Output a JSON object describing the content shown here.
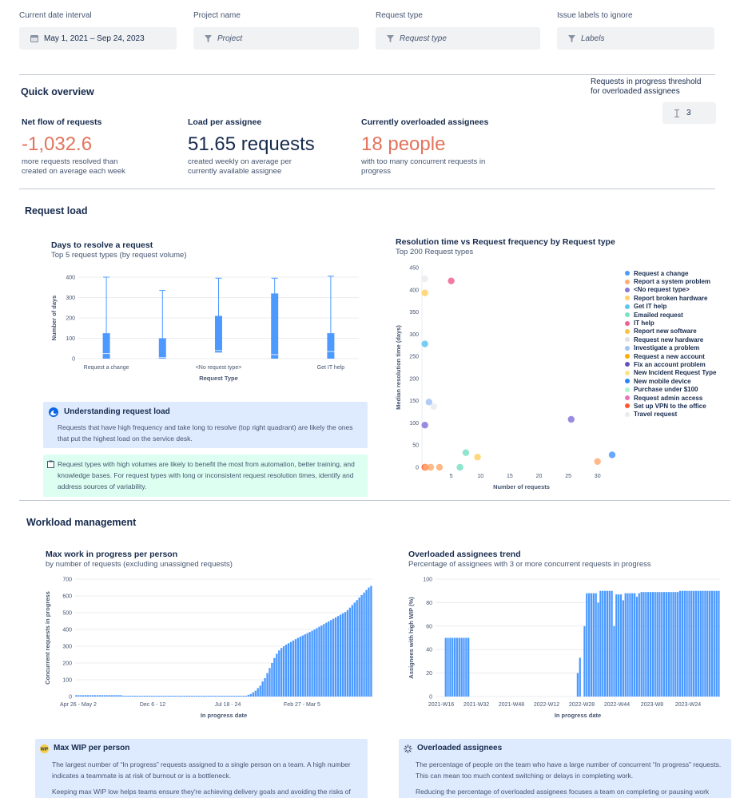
{
  "filters": {
    "date": {
      "label": "Current date interval",
      "value": "May 1, 2021  –  Sep 24, 2023"
    },
    "project": {
      "label": "Project name",
      "placeholder": "Project"
    },
    "request_type": {
      "label": "Request type",
      "placeholder": "Request type"
    },
    "labels": {
      "label": "Issue labels to ignore",
      "placeholder": "Labels"
    }
  },
  "overview": {
    "title": "Quick overview",
    "threshold_label": "Requests in progress threshold for overloaded assignees",
    "threshold_value": "3",
    "metrics": [
      {
        "title": "Net flow of requests",
        "value": "-1,032.6",
        "desc": "more requests resolved than created on average each week",
        "color": "#e2735c"
      },
      {
        "title": "Load per assignee",
        "value": "51.65 requests",
        "desc": "created weekly on average per currently available assignee",
        "color": "#172b4d"
      },
      {
        "title": "Currently overloaded assignees",
        "value": "18 people",
        "desc": "with too many concurrent requests in progress",
        "color": "#e2735c"
      }
    ]
  },
  "request_load": {
    "title": "Request load",
    "days_chart": {
      "title": "Days to resolve a request",
      "subtitle": "Top 5 request types (by request volume)"
    },
    "scatter_chart": {
      "title": "Resolution time vs Request frequency by Request type",
      "subtitle": "Top 200 Request types"
    },
    "info_panel": {
      "title": "Understanding request load",
      "text": "Requests that have high frequency and take long to resolve (top right quadrant) are likely the ones that put the highest load on the service desk."
    },
    "tip_panel": {
      "text": "Request types with high volumes are likely to benefit the most from automation, better training, and knowledge bases. For request types with long or inconsistent request resolution times, identify and address sources of variability."
    }
  },
  "workload": {
    "title": "Workload management",
    "wip_chart": {
      "title": "Max work in progress per person",
      "subtitle": "by number of requests (excluding unassigned requests)"
    },
    "overload_chart": {
      "title": "Overloaded assignees trend",
      "subtitle": "Percentage of assignees with 3 or more concurrent requests in progress"
    },
    "wip_panel": {
      "title": "Max WIP per person",
      "text1": "The largest number of “In progress” requests assigned to a single person on a team. A high number indicates a teammate is at risk of burnout or is a bottleneck.",
      "text2": "Keeping max WIP low helps teams ensure they're achieving delivery goals and avoiding the risks of"
    },
    "overload_panel": {
      "title": "Overloaded assignees",
      "text1": "The percentage of people on the team who have a large number of concurrent “In progress” requests. This can mean too much context switching or delays in completing work.",
      "text2": "Reducing the percentage of overloaded assignees focuses a team on completing or pausing work"
    }
  },
  "chart_data": [
    {
      "type": "box",
      "title": "Days to resolve a request",
      "xlabel": "Request Type",
      "ylabel": "Number of days",
      "ylim": [
        0,
        400
      ],
      "yticks": [
        0,
        100,
        200,
        300,
        400
      ],
      "categories": [
        "Request a change",
        "",
        "<No request type>",
        "",
        "Get IT help"
      ],
      "boxes": [
        {
          "min": 0,
          "q1": 0,
          "median": 25,
          "q3": 125,
          "max": 400
        },
        {
          "min": 0,
          "q1": 0,
          "median": 5,
          "q3": 100,
          "max": 335
        },
        {
          "min": 25,
          "q1": 30,
          "median": 40,
          "q3": 210,
          "max": 395
        },
        {
          "min": 0,
          "q1": 0,
          "median": 20,
          "q3": 320,
          "max": 395
        },
        {
          "min": 0,
          "q1": 0,
          "median": 35,
          "q3": 125,
          "max": 405
        }
      ],
      "color": "#4c9aff"
    },
    {
      "type": "scatter",
      "title": "Resolution time vs Request frequency by Request type",
      "xlabel": "Number of requests",
      "ylabel": "Median resolution time (days)",
      "xlim": [
        0,
        34
      ],
      "ylim": [
        0,
        450
      ],
      "xticks": [
        5,
        10,
        15,
        20,
        25,
        30
      ],
      "yticks": [
        0,
        50,
        100,
        150,
        200,
        250,
        300,
        350,
        400,
        450
      ],
      "legend": [
        {
          "name": "Request a change",
          "color": "#4c9aff"
        },
        {
          "name": "Report a system problem",
          "color": "#ffab73"
        },
        {
          "name": "<No request type>",
          "color": "#8777d9"
        },
        {
          "name": "Report broken hardware",
          "color": "#ffd166"
        },
        {
          "name": "Get IT help",
          "color": "#5ec5f2"
        },
        {
          "name": "Emailed request",
          "color": "#79e2c4"
        },
        {
          "name": "IT help",
          "color": "#f06292"
        },
        {
          "name": "Report new software",
          "color": "#f6c342"
        },
        {
          "name": "Request new hardware",
          "color": "#dfe1e6"
        },
        {
          "name": "Investigate a problem",
          "color": "#a3c4f3"
        },
        {
          "name": "Request a new account",
          "color": "#ffab00"
        },
        {
          "name": "Fix an account problem",
          "color": "#6554c0"
        },
        {
          "name": "New Incident Request Type",
          "color": "#ffe380"
        },
        {
          "name": "New mobile device",
          "color": "#2684ff"
        },
        {
          "name": "Purchase under $100",
          "color": "#abf5d1"
        },
        {
          "name": "Request admin access",
          "color": "#e774bb"
        },
        {
          "name": "Set up VPN to the office",
          "color": "#ff5630"
        },
        {
          "name": "Travel request",
          "color": "#e9ebee"
        }
      ],
      "points": [
        {
          "x": 0.5,
          "y": 425,
          "color": "#e9ebee"
        },
        {
          "x": 0.5,
          "y": 393,
          "color": "#ffd166"
        },
        {
          "x": 5,
          "y": 420,
          "color": "#f06292"
        },
        {
          "x": 0.5,
          "y": 278,
          "color": "#5ec5f2"
        },
        {
          "x": 1.2,
          "y": 147,
          "color": "#a3c4f3"
        },
        {
          "x": 2,
          "y": 137,
          "color": "#e9ebee"
        },
        {
          "x": 0.5,
          "y": 95,
          "color": "#8777d9"
        },
        {
          "x": 0.5,
          "y": 0,
          "color": "#ff5630"
        },
        {
          "x": 0.7,
          "y": 0,
          "color": "#ffab73"
        },
        {
          "x": 1.5,
          "y": 0,
          "color": "#ffab73"
        },
        {
          "x": 3,
          "y": 0,
          "color": "#ffab73"
        },
        {
          "x": 6.5,
          "y": 0,
          "color": "#79e2c4"
        },
        {
          "x": 7.5,
          "y": 33,
          "color": "#79e2c4"
        },
        {
          "x": 9.5,
          "y": 23,
          "color": "#ffd166"
        },
        {
          "x": 25.5,
          "y": 108,
          "color": "#8777d9"
        },
        {
          "x": 30,
          "y": 13,
          "color": "#ffab73"
        },
        {
          "x": 32.5,
          "y": 28,
          "color": "#4c9aff"
        }
      ]
    },
    {
      "type": "bar",
      "title": "Max work in progress per person",
      "xlabel": "In progress date",
      "ylabel": "Concurrent requests in progress",
      "ylim": [
        0,
        700
      ],
      "yticks": [
        0,
        100,
        200,
        300,
        400,
        500,
        600,
        700
      ],
      "tick_labels": [
        "Apr 26 - May 2",
        "Dec 6 - 12",
        "Jul 18 - 24",
        "Feb 27 - Mar 5"
      ],
      "weeks": 125,
      "values": [
        8,
        8,
        8,
        8,
        8,
        8,
        8,
        8,
        8,
        8,
        8,
        8,
        8,
        8,
        8,
        8,
        8,
        8,
        8,
        8,
        5,
        5,
        5,
        5,
        5,
        5,
        5,
        5,
        5,
        5,
        5,
        5,
        5,
        5,
        5,
        5,
        5,
        5,
        5,
        5,
        5,
        5,
        5,
        5,
        5,
        5,
        5,
        5,
        5,
        5,
        5,
        5,
        5,
        5,
        5,
        5,
        5,
        5,
        5,
        5,
        5,
        5,
        5,
        5,
        5,
        5,
        5,
        5,
        5,
        5,
        5,
        5,
        5,
        10,
        15,
        25,
        35,
        50,
        65,
        90,
        110,
        140,
        170,
        200,
        230,
        255,
        275,
        290,
        300,
        310,
        318,
        326,
        334,
        342,
        350,
        357,
        364,
        371,
        378,
        385,
        392,
        400,
        408,
        416,
        424,
        432,
        440,
        448,
        456,
        464,
        472,
        480,
        488,
        496,
        504,
        515,
        530,
        545,
        560,
        575,
        590,
        605,
        620,
        635,
        650,
        660
      ]
    },
    {
      "type": "bar",
      "title": "Overloaded assignees trend",
      "xlabel": "In progress date",
      "ylabel": "Assignees with high WIP (%)",
      "ylim": [
        0,
        100
      ],
      "yticks": [
        0,
        20,
        40,
        60,
        80,
        100
      ],
      "tick_labels": [
        "2021-W16",
        "2021-W32",
        "2021-W48",
        "2022-W12",
        "2022-W28",
        "2022-W44",
        "2023-W8",
        "2023-W24"
      ],
      "weeks": 125,
      "values": [
        0,
        0,
        0,
        0,
        50,
        50,
        50,
        50,
        50,
        50,
        50,
        50,
        50,
        50,
        50,
        0,
        0,
        0,
        0,
        0,
        0,
        0,
        0,
        0,
        0,
        0,
        0,
        0,
        0,
        0,
        0,
        0,
        0,
        0,
        0,
        0,
        0,
        0,
        0,
        0,
        0,
        0,
        0,
        0,
        0,
        0,
        0,
        0,
        0,
        0,
        0,
        0,
        0,
        0,
        0,
        0,
        0,
        0,
        0,
        0,
        0,
        0,
        20,
        33,
        0,
        60,
        88,
        88,
        88,
        88,
        88,
        80,
        90,
        90,
        90,
        90,
        90,
        90,
        60,
        87,
        87,
        87,
        82,
        88,
        88,
        88,
        88,
        88,
        85,
        88,
        89,
        89,
        89,
        89,
        89,
        89,
        89,
        89,
        89,
        89,
        89,
        89,
        89,
        89,
        89,
        89,
        89,
        90,
        90,
        90,
        90,
        90,
        90,
        90,
        90,
        90,
        90,
        90,
        90,
        90,
        90,
        90,
        90,
        90,
        90
      ]
    }
  ]
}
